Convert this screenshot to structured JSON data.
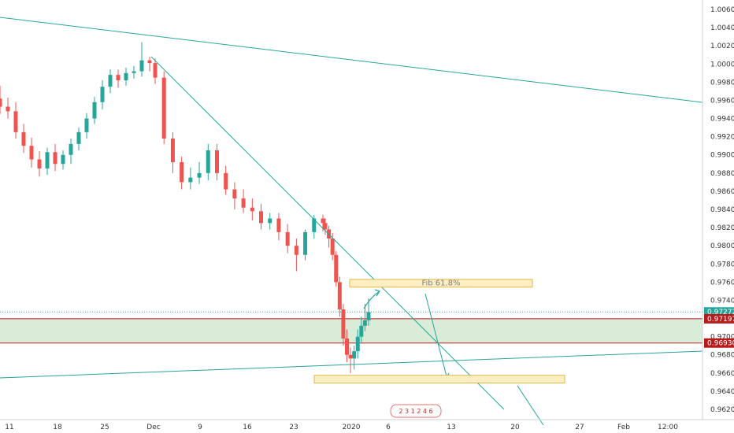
{
  "chart_data": {
    "type": "candlestick",
    "y_axis": {
      "position": "right",
      "range": [
        0.961,
        1.007
      ],
      "tick_labels": [
        "1.00600",
        "1.00400",
        "1.00200",
        "1.00000",
        "0.99800",
        "0.99600",
        "0.99400",
        "0.99200",
        "0.99000",
        "0.98800",
        "0.98600",
        "0.98400",
        "0.98200",
        "0.98000",
        "0.97800",
        "0.97600",
        "0.97400",
        "0.97000",
        "0.96800",
        "0.96600",
        "0.96400",
        "0.96200"
      ]
    },
    "x_axis": {
      "tick_labels": [
        "11",
        "18",
        "25",
        "Dec",
        "9",
        "16",
        "23",
        "2020",
        "6",
        "13",
        "20",
        "27",
        "Feb",
        "12:00"
      ]
    },
    "price_tags": [
      {
        "label": "0.97272",
        "value": 0.97272,
        "color": "#26a69a"
      },
      {
        "label": "0.97197",
        "value": 0.97197,
        "color": "#b71c1c"
      },
      {
        "label": "0.96930",
        "value": 0.9693,
        "color": "#b71c1c"
      }
    ],
    "support_zone": {
      "from": 0.9693,
      "to": 0.97197,
      "color": "#d9ecd8"
    },
    "annotations": [
      {
        "label": "Fib 61.8%",
        "from": 0.97545,
        "to": 0.9763
      },
      {
        "label": "",
        "from": 0.9649,
        "to": 0.96575
      }
    ],
    "candles": {
      "open": [
        0.9962,
        0.9953,
        0.9948,
        0.9925,
        0.991,
        0.9895,
        0.9885,
        0.9903,
        0.989,
        0.99,
        0.9912,
        0.9925,
        0.994,
        0.9958,
        0.9975,
        0.9988,
        0.9982,
        0.999,
        0.9992,
        1.0004
      ],
      "close": [
        0.9953,
        0.9948,
        0.9925,
        0.991,
        0.9895,
        0.9885,
        0.9903,
        0.989,
        0.99,
        0.9912,
        0.9925,
        0.994,
        0.9958,
        0.9975,
        0.9988,
        0.9982,
        0.999,
        0.9992,
        1.0004,
        1.0001
      ],
      "high": [
        0.9976,
        0.9963,
        0.9958,
        0.9934,
        0.9919,
        0.9904,
        0.9908,
        0.9912,
        0.9905,
        0.9918,
        0.993,
        0.9946,
        0.9964,
        0.9982,
        0.9994,
        0.9994,
        0.9996,
        0.9998,
        1.0024,
        1.0008
      ],
      "low": [
        0.9945,
        0.994,
        0.9918,
        0.9902,
        0.9886,
        0.9876,
        0.9878,
        0.9882,
        0.9884,
        0.989,
        0.9905,
        0.9918,
        0.9934,
        0.995,
        0.9968,
        0.9974,
        0.9976,
        0.9984,
        0.9986,
        0.9992
      ],
      "open2": [
        1.0001,
        0.9985,
        0.9918,
        0.9892,
        0.987,
        0.9875,
        0.988,
        0.9905,
        0.988,
        0.9862,
        0.9852,
        0.9842,
        0.9838,
        0.9825,
        0.983,
        0.9815,
        0.98,
        0.979,
        0.9815,
        0.983
      ],
      "close2": [
        0.9985,
        0.9918,
        0.9892,
        0.987,
        0.9875,
        0.988,
        0.9905,
        0.988,
        0.9862,
        0.9852,
        0.9842,
        0.9838,
        0.9825,
        0.983,
        0.9815,
        0.98,
        0.979,
        0.9815,
        0.983,
        0.9825
      ],
      "high2": [
        1.0006,
        0.9992,
        0.9925,
        0.9898,
        0.9886,
        0.9892,
        0.9912,
        0.9912,
        0.9888,
        0.987,
        0.9862,
        0.9852,
        0.9846,
        0.9836,
        0.9836,
        0.9824,
        0.9808,
        0.9818,
        0.9834,
        0.9834
      ],
      "low2": [
        0.9978,
        0.9912,
        0.988,
        0.9862,
        0.9862,
        0.9868,
        0.9872,
        0.9872,
        0.9856,
        0.984,
        0.9836,
        0.9828,
        0.9818,
        0.9818,
        0.9806,
        0.9792,
        0.9772,
        0.9784,
        0.9808,
        0.9816
      ],
      "open3": [
        0.9825,
        0.9818,
        0.9808,
        0.979,
        0.976,
        0.973,
        0.9698,
        0.968,
        0.9676,
        0.9684,
        0.97,
        0.9712,
        0.9718
      ],
      "close3": [
        0.9818,
        0.9808,
        0.979,
        0.976,
        0.973,
        0.9698,
        0.968,
        0.9676,
        0.9684,
        0.97,
        0.9712,
        0.9718,
        0.9727
      ],
      "high3": [
        0.983,
        0.9822,
        0.9814,
        0.9794,
        0.9766,
        0.9736,
        0.9708,
        0.9688,
        0.969,
        0.9708,
        0.9722,
        0.9736,
        0.9742
      ],
      "low3": [
        0.9812,
        0.9798,
        0.9784,
        0.9755,
        0.9722,
        0.969,
        0.9672,
        0.966,
        0.9664,
        0.9676,
        0.9694,
        0.9706,
        0.9712
      ]
    }
  },
  "colors": {
    "up": "#26a69a",
    "down": "#ef5350",
    "trend": "#26a69a",
    "zone_border": "#b71c1c",
    "annot_fill": "#fdefc2",
    "annot_stroke": "#e0b84c"
  }
}
